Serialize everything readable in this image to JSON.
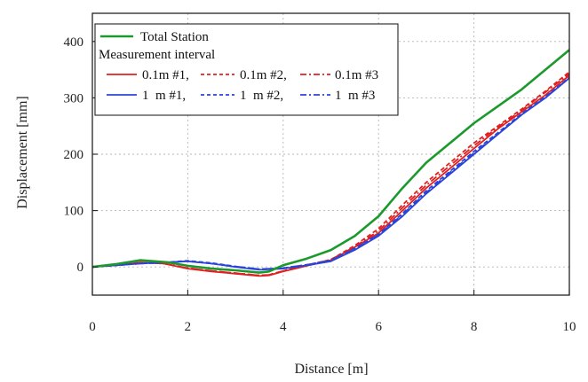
{
  "chart_data": {
    "type": "line",
    "xlabel": "Distance [m]",
    "ylabel": "Displacement [mm]",
    "xlim": [
      0,
      10
    ],
    "ylim": [
      -50,
      450
    ],
    "xticks": [
      "0",
      "2",
      "4",
      "6",
      "8",
      "10"
    ],
    "yticks": [
      "0",
      "100",
      "200",
      "300",
      "400"
    ],
    "grid": true,
    "legend_position": "top-left",
    "legend": {
      "title_entry": "Total Station",
      "subtitle": "Measurement interval",
      "row1": [
        "0.1m #1,",
        "0.1m #2,",
        "0.1m #3"
      ],
      "row2": [
        "1  m #1,",
        "1  m #2,",
        "1  m #3"
      ]
    },
    "series": [
      {
        "name": "Total Station",
        "color": "#1a9a2c",
        "dash": "solid",
        "x": [
          0,
          0.5,
          1.0,
          1.3,
          1.6,
          2.0,
          2.5,
          3.0,
          3.5,
          3.7,
          4.0,
          4.5,
          5.0,
          5.5,
          6.0,
          6.5,
          7.0,
          7.5,
          8.0,
          8.5,
          9.0,
          9.5,
          10.0
        ],
        "y": [
          0,
          5,
          12,
          10,
          8,
          2,
          -3,
          -6,
          -10,
          -8,
          3,
          15,
          30,
          55,
          90,
          140,
          185,
          220,
          255,
          285,
          315,
          350,
          385
        ]
      },
      {
        "name": "0.1m #1",
        "color": "#e02020",
        "dash": "solid",
        "x": [
          0,
          0.5,
          1.0,
          1.5,
          2.0,
          2.5,
          3.0,
          3.5,
          3.7,
          4.0,
          4.5,
          5.0,
          5.5,
          6.0,
          6.5,
          7.0,
          7.5,
          8.0,
          8.5,
          9.0,
          9.5,
          10.0
        ],
        "y": [
          0,
          3,
          8,
          6,
          -3,
          -8,
          -12,
          -16,
          -15,
          -8,
          2,
          12,
          35,
          60,
          100,
          140,
          175,
          210,
          245,
          275,
          305,
          340
        ]
      },
      {
        "name": "0.1m #2",
        "color": "#e02020",
        "dash": "dashed",
        "x": [
          0,
          0.5,
          1.0,
          1.5,
          2.0,
          2.5,
          3.0,
          3.5,
          3.7,
          4.0,
          4.5,
          5.0,
          5.5,
          6.0,
          6.5,
          7.0,
          7.5,
          8.0,
          8.5,
          9.0,
          9.5,
          10.0
        ],
        "y": [
          0,
          3,
          8,
          6,
          -2,
          -7,
          -11,
          -15,
          -14,
          -7,
          3,
          13,
          38,
          68,
          110,
          150,
          185,
          220,
          250,
          280,
          312,
          346
        ]
      },
      {
        "name": "0.1m #3",
        "color": "#e02020",
        "dash": "dashdot",
        "x": [
          0,
          0.5,
          1.0,
          1.5,
          2.0,
          2.5,
          3.0,
          3.5,
          3.7,
          4.0,
          4.5,
          5.0,
          5.5,
          6.0,
          6.5,
          7.0,
          7.5,
          8.0,
          8.5,
          9.0,
          9.5,
          10.0
        ],
        "y": [
          0,
          3,
          8,
          6,
          -2,
          -7,
          -11,
          -15,
          -14,
          -7,
          3,
          13,
          36,
          64,
          105,
          145,
          180,
          215,
          248,
          278,
          310,
          343
        ]
      },
      {
        "name": "1  m #1",
        "color": "#2a44d8",
        "dash": "solid",
        "x": [
          0,
          0.5,
          1.0,
          1.5,
          2.0,
          2.5,
          3.0,
          3.5,
          4.0,
          4.5,
          5.0,
          5.5,
          6.0,
          6.5,
          7.0,
          7.5,
          8.0,
          8.5,
          9.0,
          9.5,
          10.0
        ],
        "y": [
          0,
          3,
          6,
          8,
          10,
          6,
          0,
          -5,
          -3,
          3,
          10,
          30,
          55,
          90,
          130,
          165,
          200,
          235,
          270,
          300,
          335
        ]
      },
      {
        "name": "1  m #2",
        "color": "#2a44d8",
        "dash": "dashed",
        "x": [
          0,
          0.5,
          1.0,
          1.5,
          2.0,
          2.5,
          3.0,
          3.5,
          4.0,
          4.5,
          5.0,
          5.5,
          6.0,
          6.5,
          7.0,
          7.5,
          8.0,
          8.5,
          9.0,
          9.5,
          10.0
        ],
        "y": [
          0,
          3,
          6,
          8,
          11,
          7,
          1,
          -4,
          -2,
          4,
          12,
          33,
          58,
          95,
          135,
          170,
          205,
          238,
          272,
          302,
          336
        ]
      },
      {
        "name": "1  m #3",
        "color": "#2a44d8",
        "dash": "dashdot",
        "x": [
          0,
          0.5,
          1.0,
          1.5,
          2.0,
          2.5,
          3.0,
          3.5,
          4.0,
          4.5,
          5.0,
          5.5,
          6.0,
          6.5,
          7.0,
          7.5,
          8.0,
          8.5,
          9.0,
          9.5,
          10.0
        ],
        "y": [
          0,
          3,
          6,
          8,
          10,
          6,
          1,
          -4,
          -2,
          4,
          11,
          32,
          57,
          93,
          132,
          168,
          202,
          236,
          270,
          301,
          335
        ]
      }
    ]
  }
}
